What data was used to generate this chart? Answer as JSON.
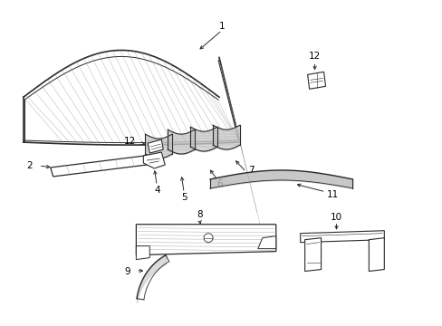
{
  "background_color": "#ffffff",
  "line_color": "#2a2a2a",
  "hatch_color": "#555555",
  "fig_width": 4.89,
  "fig_height": 3.6,
  "dpi": 100,
  "fontsize": 7.5
}
